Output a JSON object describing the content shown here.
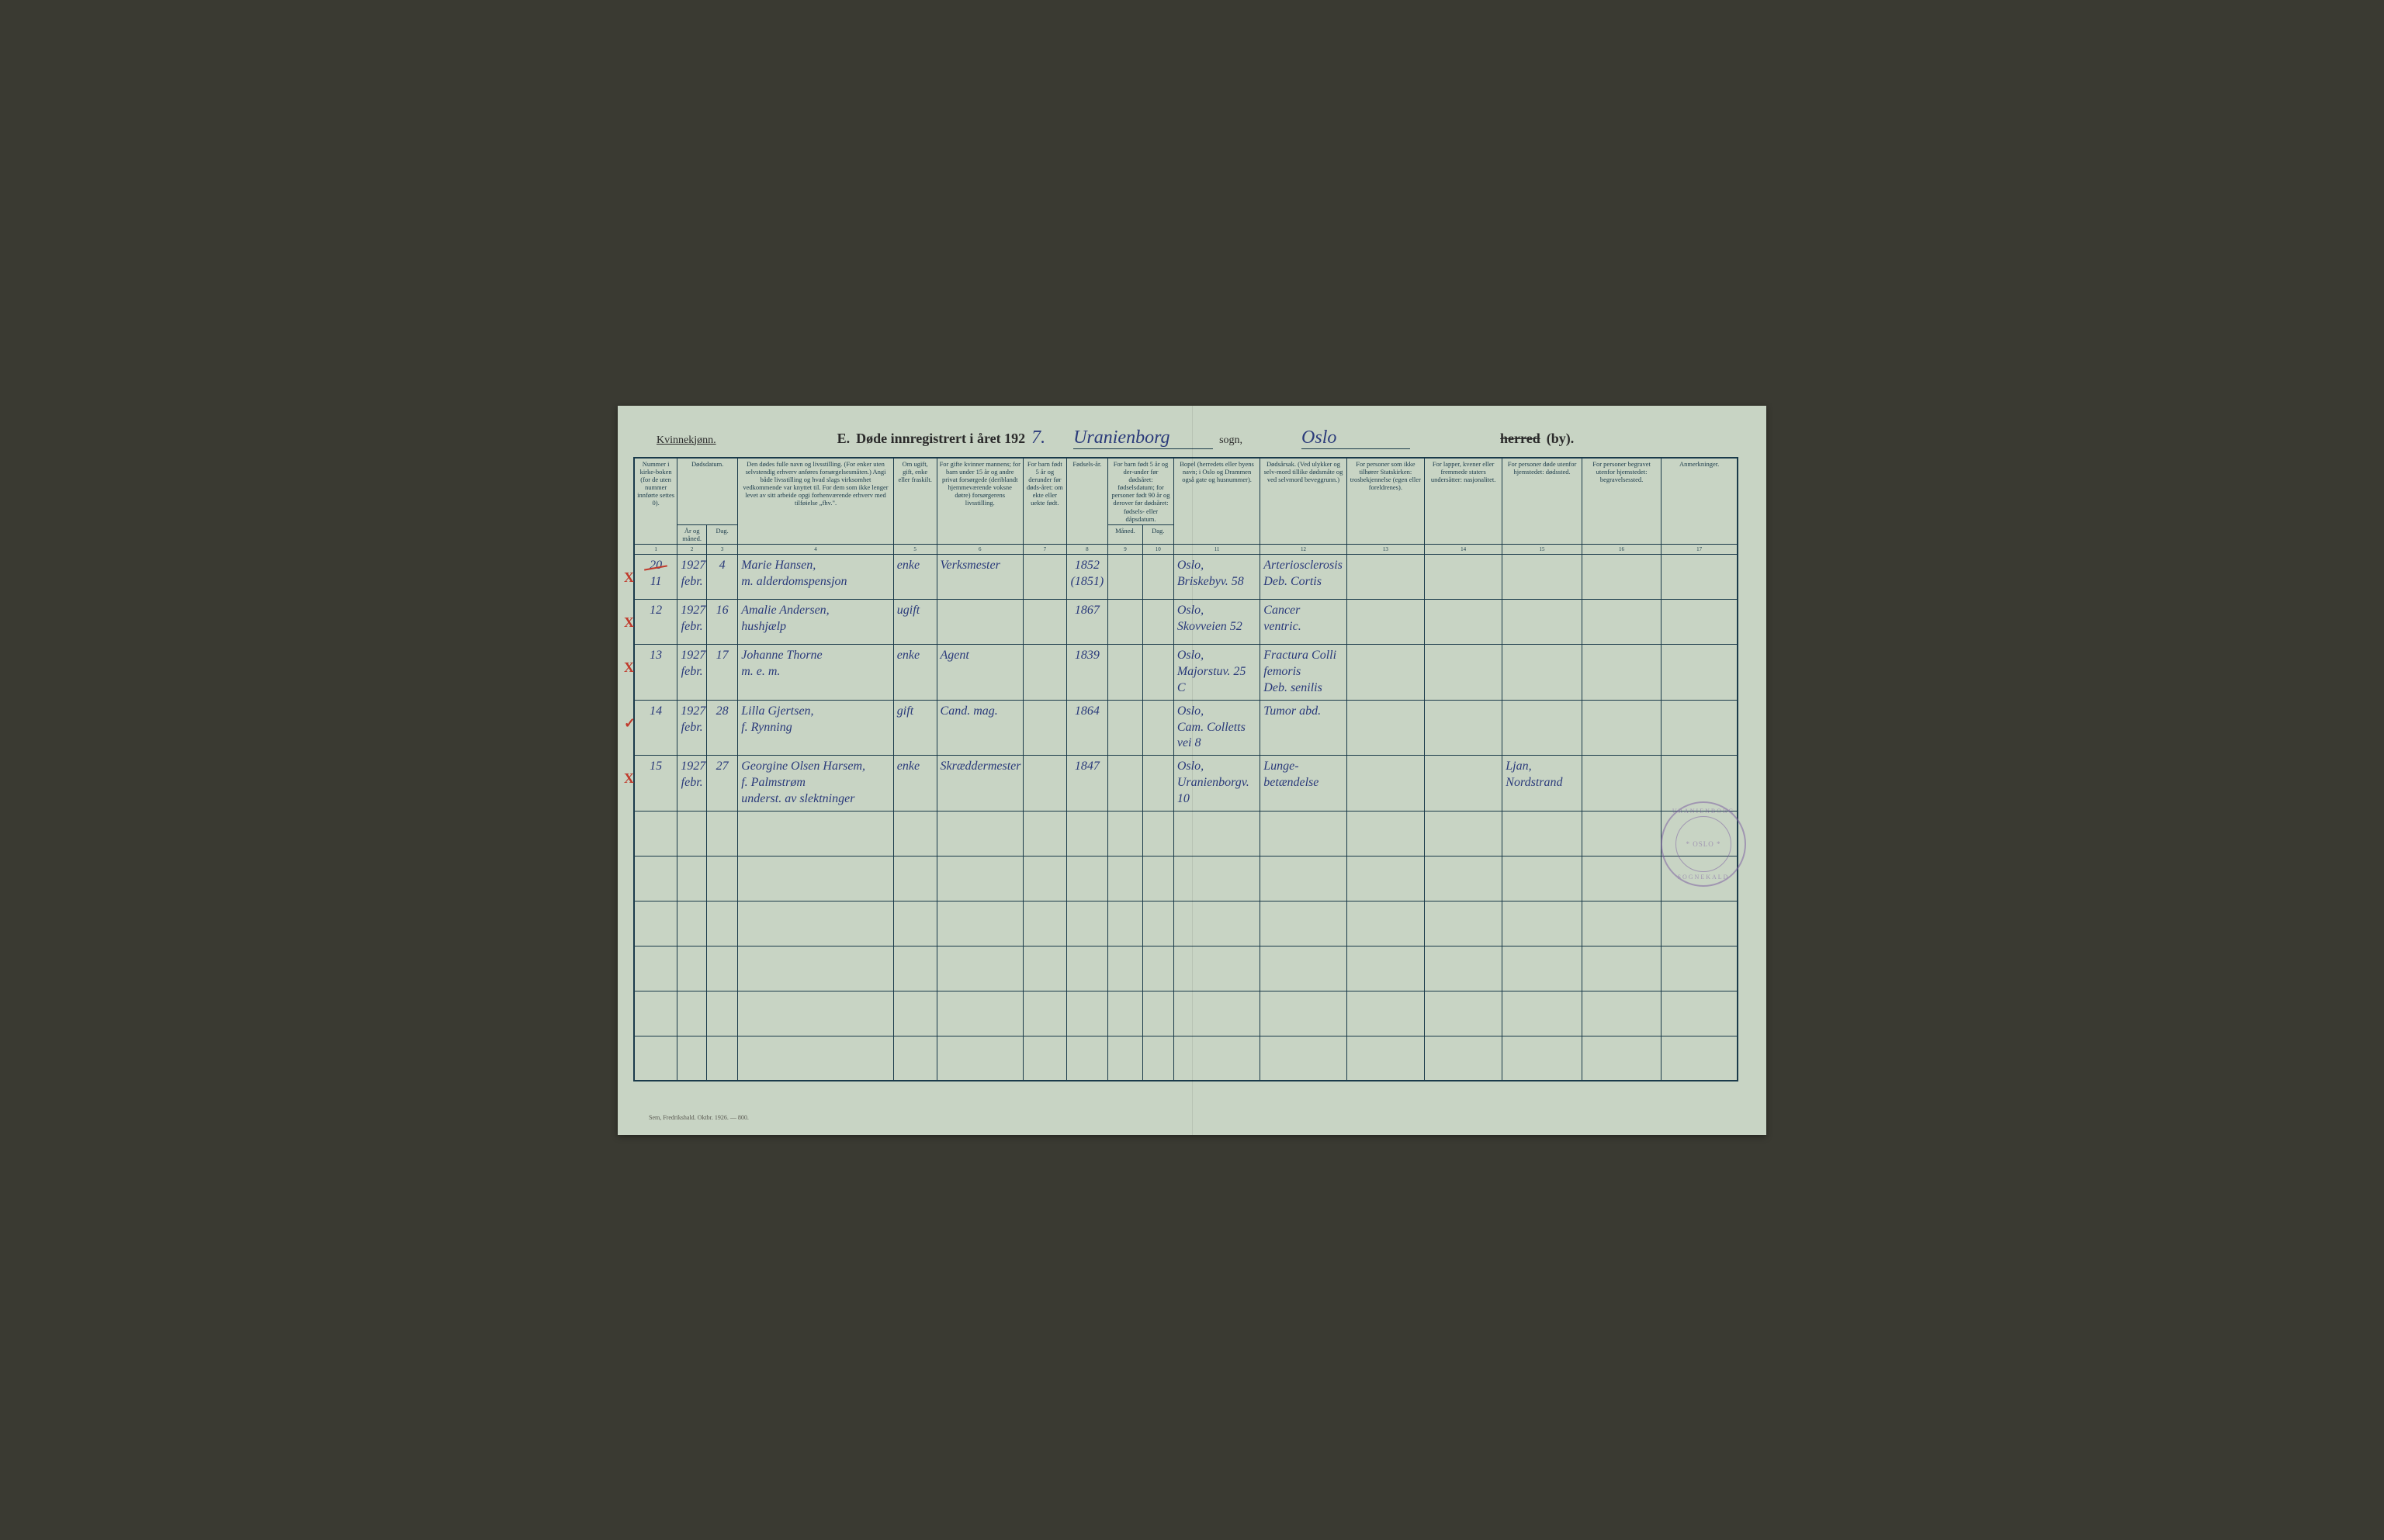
{
  "colors": {
    "paper": "#c8d4c4",
    "ink_print": "#1a3a4a",
    "ink_script": "#2a3a7a",
    "ink_red": "#c0392b",
    "stamp": "#7a5aa0",
    "background": "#3a3a32"
  },
  "typography": {
    "print_family": "Georgia, serif",
    "script_family": "Brush Script MT, cursive",
    "header_title_size_pt": 14,
    "th_size_pt": 7,
    "entry_script_size_pt": 12
  },
  "header": {
    "gender": "Kvinnekjønn.",
    "section_letter": "E.",
    "title_prefix": "Døde innregistrert i året 192",
    "year_digit": "7.",
    "parish_script": "Uranienborg",
    "parish_label": "sogn,",
    "city_script": "Oslo",
    "herred_strike": "herred",
    "by_label": "(by)."
  },
  "columns": [
    {
      "w": 50,
      "label": "Nummer i kirke-boken (for de uten nummer innførte settes 0)."
    },
    {
      "w": 34,
      "label": "År og måned."
    },
    {
      "w": 36,
      "label": "Dag."
    },
    {
      "w": 180,
      "label": "Den dødes fulle navn og livsstilling. (For enker uten selvstendig erhverv anføres forsørgelsesmåten.) Angi både livsstilling og hvad slags virksomhet vedkommende var knyttet til. For dem som ikke lenger levet av sitt arbeide opgi forhenværende erhverv med tilføielse „fhv.\"."
    },
    {
      "w": 50,
      "label": "Om ugift, gift, enke eller fraskilt."
    },
    {
      "w": 100,
      "label": "For gifte kvinner mannens; for barn under 15 år og andre privat forsørgede (deriblandt hjemmeværende voksne døtre) forsørgerens livsstilling."
    },
    {
      "w": 50,
      "label": "For barn født 5 år og derunder før døds-året: om ekte eller uekte født."
    },
    {
      "w": 48,
      "label": "Fødsels-år."
    },
    {
      "w": 40,
      "label": "Måned."
    },
    {
      "w": 36,
      "label": "Dag."
    },
    {
      "w": 100,
      "label": "Bopel (herredets eller byens navn; i Oslo og Drammen også gate og husnummer)."
    },
    {
      "w": 100,
      "label": "Dødsårsak. (Ved ulykker og selv-mord tillike dødsmåte og ved selvmord beveggrunn.)"
    },
    {
      "w": 90,
      "label": "For personer som ikke tilhører Statskirken: trosbekjennelse (egen eller foreldrenes)."
    },
    {
      "w": 90,
      "label": "For lapper, kvener eller fremmede staters undersåtter: nasjonalitet."
    },
    {
      "w": 92,
      "label": "For personer døde utenfor hjemstedet: dødssted."
    },
    {
      "w": 92,
      "label": "For personer begravet utenfor hjemstedet: begravelsessted."
    },
    {
      "w": 88,
      "label": "Anmerkninger."
    }
  ],
  "header_groups": {
    "dodsdatum": "Dødsdatum.",
    "barn_fodt": "For barn født 5 år og der-under før dødsåret: fødselsdatum; for personer født 90 år og derover før dødsåret: fødsels- eller dåpsdatum."
  },
  "colnums": [
    "1",
    "2",
    "3",
    "4",
    "5",
    "6",
    "7",
    "8",
    "9",
    "10",
    "11",
    "12",
    "13",
    "14",
    "15",
    "16",
    "17"
  ],
  "entries": [
    {
      "no": "11",
      "no_prefix": "20",
      "red_mark": "X",
      "year_month": "1927\nfebr.",
      "day": "4",
      "name": "Marie Hansen,\nm. alderdomspensjon",
      "status": "enke",
      "spouse": "Verksmester",
      "birth_year": "1852\n(1851)",
      "residence": "Oslo,\nBriskebyv. 58",
      "cause": "Arteriosclerosis\nDeb. Cortis"
    },
    {
      "no": "12",
      "red_mark": "X",
      "year_month": "1927\nfebr.",
      "day": "16",
      "name": "Amalie Andersen,\nhushjælp",
      "status": "ugift",
      "spouse": "",
      "birth_year": "1867",
      "residence": "Oslo,\nSkovveien 52",
      "cause": "Cancer\nventric."
    },
    {
      "no": "13",
      "red_mark": "X",
      "year_month": "1927\nfebr.",
      "day": "17",
      "name": "Johanne Thorne\nm. e. m.",
      "status": "enke",
      "spouse": "Agent",
      "birth_year": "1839",
      "residence": "Oslo,\nMajorstuv. 25 C",
      "cause": "Fractura Colli\nfemoris\nDeb. senilis"
    },
    {
      "no": "14",
      "red_mark": "✓",
      "year_month": "1927\nfebr.",
      "day": "28",
      "name": "Lilla Gjertsen,\nf. Rynning",
      "status": "gift",
      "spouse": "Cand. mag.",
      "birth_year": "1864",
      "residence": "Oslo,\nCam. Colletts\nvei 8",
      "cause": "Tumor abd."
    },
    {
      "no": "15",
      "red_mark": "X",
      "year_month": "1927\nfebr.",
      "day": "27",
      "name": "Georgine Olsen Harsem,\nf. Palmstrøm\nunderst. av slektninger",
      "status": "enke",
      "spouse": "Skræddermester",
      "birth_year": "1847",
      "residence": "Oslo,\nUranienborgv. 10",
      "cause": "Lunge-\nbetændelse",
      "death_place": "Ljan,\nNordstrand"
    }
  ],
  "blank_rows": 6,
  "stamp": {
    "outer_top": "URANIENBORG",
    "outer_bottom": "SOGNEKALD",
    "inner": "* OSLO *"
  },
  "footer": "Sem, Fredrikshald. Oktbr. 1926. — 800."
}
